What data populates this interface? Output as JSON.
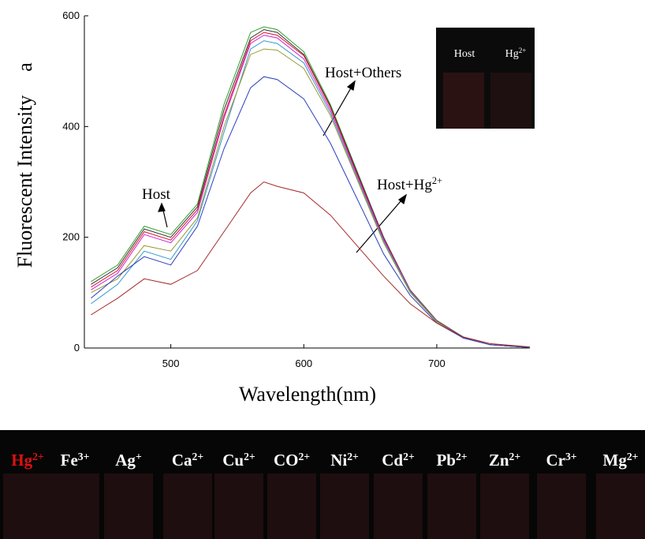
{
  "chart_data": {
    "type": "line",
    "y_label": "Fluorescent Intensity",
    "panel_label": "a",
    "x_label": "Wavelength(nm)",
    "x": [
      440,
      460,
      480,
      500,
      520,
      540,
      560,
      570,
      580,
      600,
      620,
      640,
      660,
      680,
      700,
      720,
      740,
      770
    ],
    "series": [
      {
        "color": "#2ca02c",
        "values": [
          120,
          150,
          220,
          205,
          260,
          440,
          570,
          580,
          575,
          535,
          440,
          320,
          200,
          105,
          50,
          20,
          6,
          1
        ]
      },
      {
        "color": "#333333",
        "values": [
          115,
          145,
          215,
          200,
          255,
          430,
          560,
          575,
          570,
          530,
          437,
          318,
          200,
          104,
          49,
          19,
          6,
          1
        ]
      },
      {
        "color": "#e0102a",
        "values": [
          110,
          140,
          210,
          195,
          250,
          420,
          555,
          570,
          565,
          528,
          435,
          315,
          198,
          104,
          49,
          19,
          6,
          1
        ]
      },
      {
        "color": "#d020d0",
        "values": [
          105,
          135,
          205,
          190,
          245,
          415,
          550,
          565,
          560,
          522,
          430,
          312,
          196,
          103,
          48,
          19,
          6,
          1
        ]
      },
      {
        "color": "#3399cc",
        "values": [
          80,
          115,
          175,
          160,
          230,
          390,
          540,
          555,
          550,
          515,
          425,
          308,
          193,
          102,
          48,
          18,
          6,
          1
        ]
      },
      {
        "color": "#999933",
        "values": [
          100,
          125,
          185,
          175,
          235,
          400,
          530,
          540,
          538,
          505,
          420,
          305,
          190,
          100,
          47,
          18,
          6,
          1
        ]
      },
      {
        "color": "#2b3fbf",
        "values": [
          90,
          130,
          165,
          150,
          220,
          360,
          470,
          490,
          485,
          450,
          370,
          270,
          170,
          95,
          45,
          18,
          6,
          1
        ]
      },
      {
        "color": "#a52a2a",
        "values": [
          60,
          90,
          125,
          115,
          140,
          210,
          280,
          300,
          292,
          280,
          240,
          185,
          130,
          80,
          45,
          20,
          8,
          2
        ]
      }
    ],
    "xlim": [
      435,
      770
    ],
    "xticks": [
      500,
      600,
      700
    ],
    "ylim": [
      0,
      600
    ],
    "yticks": [
      0,
      200,
      400,
      600
    ],
    "annotations": [
      {
        "text": "Host"
      },
      {
        "text": "Host+Others"
      },
      {
        "text": "Host+Hg",
        "sup": "2+"
      }
    ]
  },
  "inset_photo": {
    "labels": [
      {
        "text": "Host"
      },
      {
        "text": "Hg",
        "sup": "2+"
      }
    ]
  },
  "photo_strip": {
    "labels": [
      {
        "text": "Hg",
        "sup": "2+",
        "color": "#e01010"
      },
      {
        "text": "Fe",
        "sup": "3+",
        "color": "#ffffff"
      },
      {
        "text": "Ag",
        "sup": "+",
        "color": "#ffffff"
      },
      {
        "text": "Ca",
        "sup": "2+",
        "color": "#ffffff"
      },
      {
        "text": "Cu",
        "sup": "2+",
        "color": "#ffffff"
      },
      {
        "text": "CO",
        "sup": "2+",
        "color": "#ffffff"
      },
      {
        "text": "Ni",
        "sup": "2+",
        "color": "#ffffff"
      },
      {
        "text": "Cd",
        "sup": "2+",
        "color": "#ffffff"
      },
      {
        "text": "Pb",
        "sup": "2+",
        "color": "#ffffff"
      },
      {
        "text": "Zn",
        "sup": "2+",
        "color": "#ffffff"
      },
      {
        "text": "Cr",
        "sup": "3+",
        "color": "#ffffff"
      },
      {
        "text": "Mg",
        "sup": "2+",
        "color": "#ffffff"
      }
    ]
  }
}
